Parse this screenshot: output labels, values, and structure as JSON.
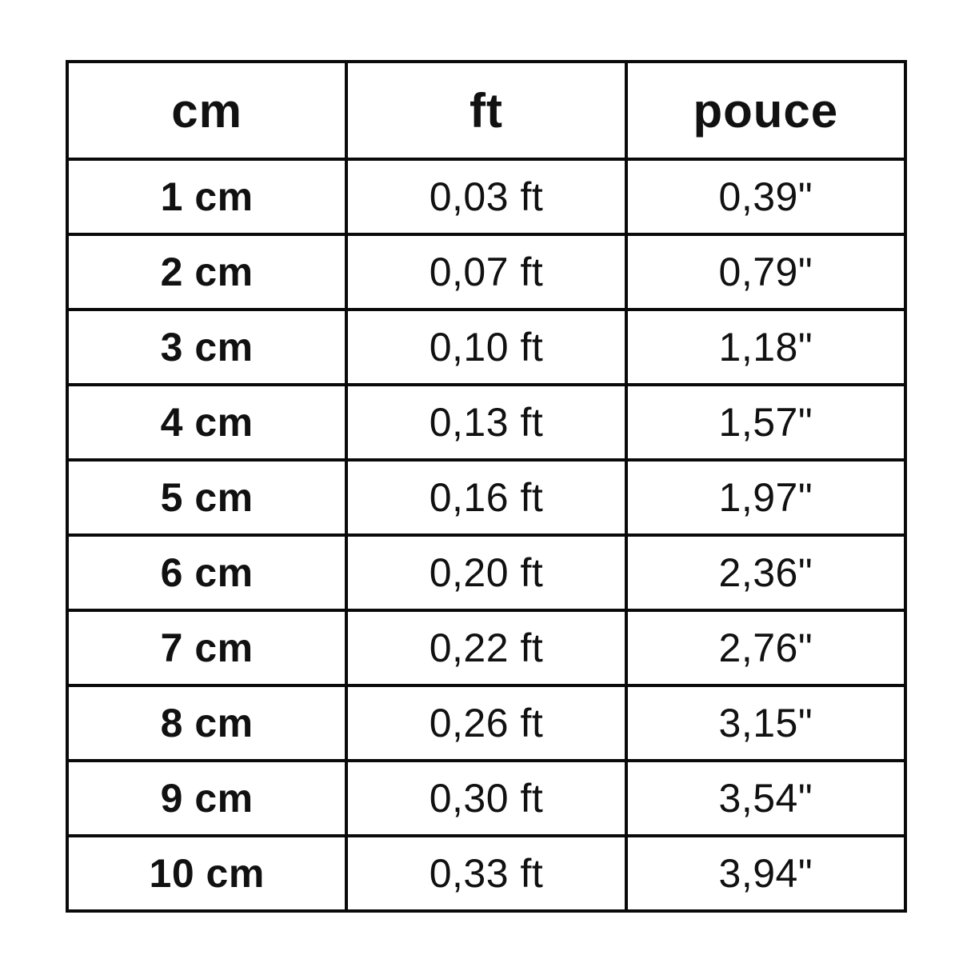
{
  "accent_colors": {
    "border": "#0a0a0a",
    "text": "#111111",
    "background": "#ffffff"
  },
  "table": {
    "headers": {
      "cm": "cm",
      "ft": "ft",
      "pouce": "pouce"
    },
    "rows": [
      {
        "cm": "1 cm",
        "ft": "0,03 ft",
        "pouce": "0,39\""
      },
      {
        "cm": "2 cm",
        "ft": "0,07 ft",
        "pouce": "0,79\""
      },
      {
        "cm": "3 cm",
        "ft": "0,10 ft",
        "pouce": "1,18\""
      },
      {
        "cm": "4 cm",
        "ft": "0,13 ft",
        "pouce": "1,57\""
      },
      {
        "cm": "5 cm",
        "ft": "0,16 ft",
        "pouce": "1,97\""
      },
      {
        "cm": "6 cm",
        "ft": "0,20 ft",
        "pouce": "2,36\""
      },
      {
        "cm": "7 cm",
        "ft": "0,22 ft",
        "pouce": "2,76\""
      },
      {
        "cm": "8 cm",
        "ft": "0,26 ft",
        "pouce": "3,15\""
      },
      {
        "cm": "9 cm",
        "ft": "0,30 ft",
        "pouce": "3,54\""
      },
      {
        "cm": "10 cm",
        "ft": "0,33 ft",
        "pouce": "3,94\""
      }
    ]
  },
  "chart_data": {
    "type": "table",
    "title": "",
    "columns": [
      "cm",
      "ft",
      "pouce"
    ],
    "rows": [
      [
        "1 cm",
        "0,03 ft",
        "0,39\""
      ],
      [
        "2 cm",
        "0,07 ft",
        "0,79\""
      ],
      [
        "3 cm",
        "0,10 ft",
        "1,18\""
      ],
      [
        "4 cm",
        "0,13 ft",
        "1,57\""
      ],
      [
        "5 cm",
        "0,16 ft",
        "1,97\""
      ],
      [
        "6 cm",
        "0,20 ft",
        "2,36\""
      ],
      [
        "7 cm",
        "0,22 ft",
        "2,76\""
      ],
      [
        "8 cm",
        "0,26 ft",
        "3,15\""
      ],
      [
        "9 cm",
        "0,30 ft",
        "3,54\""
      ],
      [
        "10 cm",
        "0,33 ft",
        "3,94\""
      ]
    ],
    "numeric": {
      "cm": [
        1,
        2,
        3,
        4,
        5,
        6,
        7,
        8,
        9,
        10
      ],
      "ft": [
        0.03,
        0.07,
        0.1,
        0.13,
        0.16,
        0.2,
        0.22,
        0.26,
        0.3,
        0.33
      ],
      "inches": [
        0.39,
        0.79,
        1.18,
        1.57,
        1.97,
        2.36,
        2.76,
        3.15,
        3.54,
        3.94
      ]
    },
    "layout_hints": {
      "grid": "on",
      "header_row": true,
      "text_align": "center"
    }
  }
}
